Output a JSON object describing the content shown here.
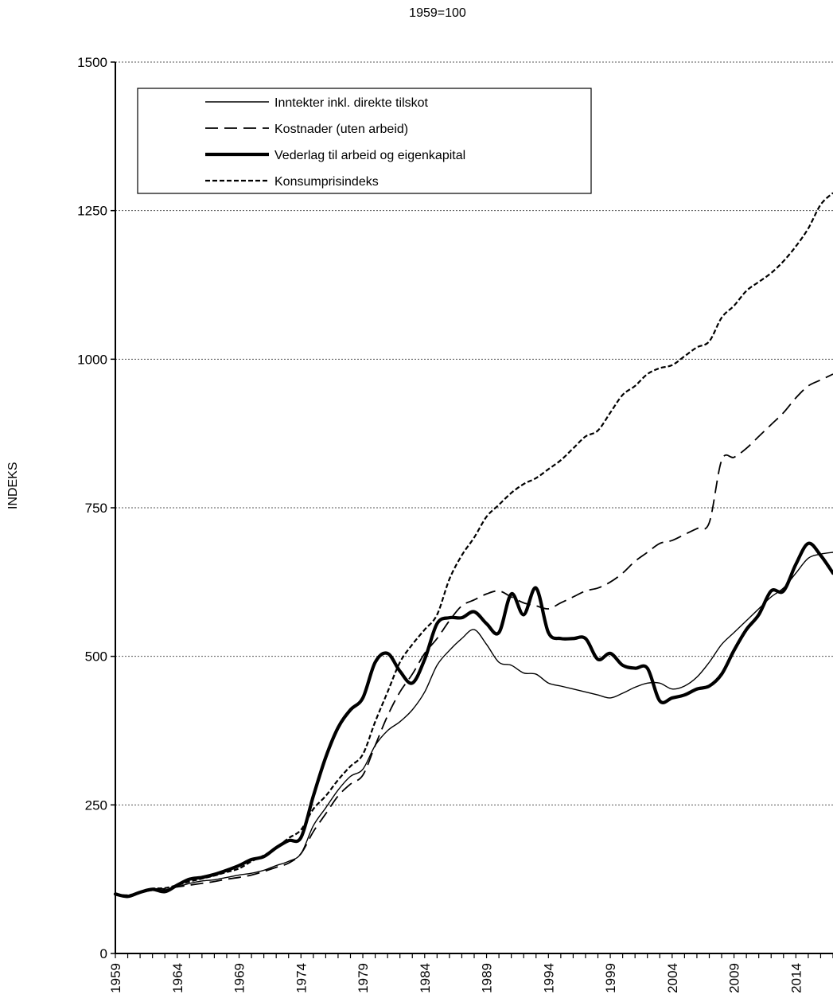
{
  "chart_data": {
    "type": "line",
    "title": "",
    "subtitle": "1959=100",
    "xlabel": "",
    "ylabel": "INDEKS",
    "xlim": [
      1959,
      2017
    ],
    "ylim": [
      0,
      1500
    ],
    "y_ticks": [
      0,
      250,
      500,
      750,
      1000,
      1250,
      1500
    ],
    "y_tick_labels": [
      "0",
      "250",
      "500",
      "750",
      "1000",
      "1250",
      "1500"
    ],
    "x_tick_labels": [
      "1959",
      "1964",
      "1969",
      "1974",
      "1979",
      "1984",
      "1989",
      "1994",
      "1999",
      "2004",
      "2009",
      "2014"
    ],
    "grid": "horizontal dotted",
    "legend_position": "top-left",
    "x": [
      1959,
      1960,
      1961,
      1962,
      1963,
      1964,
      1965,
      1966,
      1967,
      1968,
      1969,
      1970,
      1971,
      1972,
      1973,
      1974,
      1975,
      1976,
      1977,
      1978,
      1979,
      1980,
      1981,
      1982,
      1983,
      1984,
      1985,
      1986,
      1987,
      1988,
      1989,
      1990,
      1991,
      1992,
      1993,
      1994,
      1995,
      1996,
      1997,
      1998,
      1999,
      2000,
      2001,
      2002,
      2003,
      2004,
      2005,
      2006,
      2007,
      2008,
      2009,
      2010,
      2011,
      2012,
      2013,
      2014,
      2015,
      2016,
      2017
    ],
    "series": [
      {
        "name": "Inntekter inkl. direkte tilskot",
        "style": "solid-thin",
        "values": [
          100,
          97,
          102,
          106,
          107,
          112,
          118,
          122,
          124,
          128,
          132,
          135,
          140,
          148,
          155,
          168,
          215,
          245,
          275,
          298,
          310,
          350,
          375,
          390,
          410,
          440,
          485,
          510,
          530,
          545,
          520,
          490,
          485,
          472,
          470,
          455,
          450,
          445,
          440,
          435,
          430,
          438,
          448,
          455,
          455,
          445,
          450,
          465,
          490,
          520,
          540,
          560,
          580,
          600,
          615,
          640,
          665,
          672,
          675
        ]
      },
      {
        "name": "Kostnader (uten arbeid)",
        "style": "dashed",
        "values": [
          100,
          98,
          103,
          108,
          109,
          112,
          115,
          118,
          121,
          125,
          128,
          132,
          138,
          145,
          152,
          168,
          205,
          235,
          265,
          285,
          300,
          350,
          400,
          440,
          470,
          505,
          530,
          560,
          585,
          595,
          605,
          610,
          600,
          590,
          585,
          580,
          590,
          600,
          610,
          615,
          625,
          640,
          660,
          675,
          690,
          695,
          705,
          715,
          725,
          830,
          835,
          850,
          870,
          890,
          910,
          935,
          955,
          965,
          975
        ]
      },
      {
        "name": "Vederlag til arbeid og eigenkapital",
        "style": "solid-thick",
        "values": [
          100,
          96,
          103,
          108,
          104,
          115,
          125,
          128,
          133,
          140,
          148,
          158,
          163,
          178,
          190,
          195,
          265,
          330,
          380,
          410,
          430,
          490,
          505,
          475,
          455,
          495,
          555,
          565,
          565,
          575,
          555,
          540,
          605,
          570,
          615,
          540,
          530,
          530,
          530,
          495,
          505,
          485,
          480,
          480,
          425,
          430,
          435,
          445,
          450,
          470,
          510,
          545,
          570,
          610,
          610,
          655,
          690,
          670,
          640
        ]
      },
      {
        "name": "Konsumprisindeks",
        "style": "dotted",
        "values": [
          100,
          98,
          103,
          109,
          110,
          115,
          121,
          126,
          131,
          137,
          143,
          155,
          165,
          178,
          194,
          208,
          243,
          265,
          292,
          315,
          335,
          390,
          440,
          490,
          520,
          545,
          570,
          630,
          670,
          700,
          735,
          755,
          775,
          790,
          800,
          815,
          830,
          850,
          870,
          880,
          910,
          940,
          955,
          975,
          985,
          990,
          1005,
          1020,
          1030,
          1070,
          1090,
          1115,
          1130,
          1145,
          1165,
          1190,
          1220,
          1260,
          1280
        ]
      }
    ]
  }
}
